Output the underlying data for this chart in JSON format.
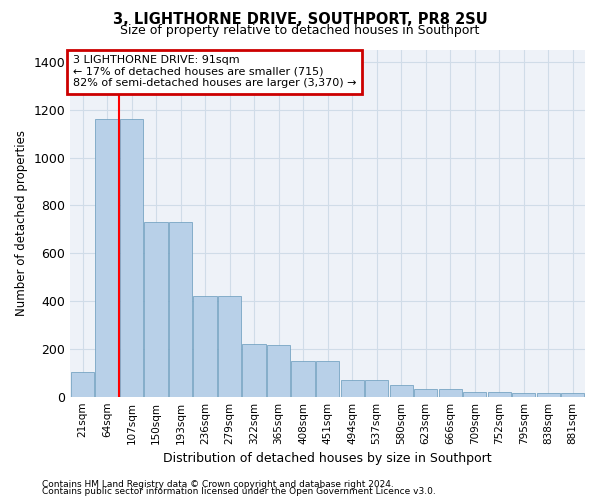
{
  "title1": "3, LIGHTHORNE DRIVE, SOUTHPORT, PR8 2SU",
  "title2": "Size of property relative to detached houses in Southport",
  "xlabel": "Distribution of detached houses by size in Southport",
  "ylabel": "Number of detached properties",
  "footer1": "Contains HM Land Registry data © Crown copyright and database right 2024.",
  "footer2": "Contains public sector information licensed under the Open Government Licence v3.0.",
  "categories": [
    "21sqm",
    "64sqm",
    "107sqm",
    "150sqm",
    "193sqm",
    "236sqm",
    "279sqm",
    "322sqm",
    "365sqm",
    "408sqm",
    "451sqm",
    "494sqm",
    "537sqm",
    "580sqm",
    "623sqm",
    "666sqm",
    "709sqm",
    "752sqm",
    "795sqm",
    "838sqm",
    "881sqm"
  ],
  "values": [
    105,
    1160,
    1160,
    730,
    730,
    420,
    420,
    220,
    215,
    150,
    148,
    70,
    68,
    48,
    33,
    33,
    20,
    20,
    15,
    15,
    15
  ],
  "bar_color": "#b8d0e8",
  "bar_edge_color": "#6699bb",
  "grid_color": "#d0dce8",
  "background_color": "#eef2f8",
  "annotation_text": "3 LIGHTHORNE DRIVE: 91sqm\n← 17% of detached houses are smaller (715)\n82% of semi-detached houses are larger (3,370) →",
  "annotation_box_color": "#cc0000",
  "ylim": [
    0,
    1450
  ],
  "yticks": [
    0,
    200,
    400,
    600,
    800,
    1000,
    1200,
    1400
  ],
  "red_line_x": 1.5
}
